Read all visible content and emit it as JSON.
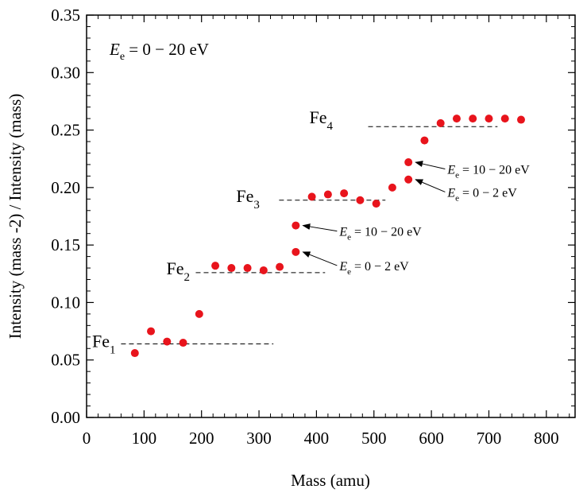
{
  "chart_data": {
    "type": "scatter",
    "xlabel": "Mass (amu)",
    "ylabel": "Intensity (mass -2) / Intensity (mass)",
    "xlim": [
      0,
      850
    ],
    "ylim": [
      0,
      0.35
    ],
    "xticks": [
      0,
      100,
      200,
      300,
      400,
      500,
      600,
      700,
      800
    ],
    "xtick_labels": [
      "0",
      "100",
      "200",
      "300",
      "400",
      "500",
      "600",
      "700",
      "800"
    ],
    "yticks": [
      0,
      0.05,
      0.1,
      0.15,
      0.2,
      0.25,
      0.3,
      0.35
    ],
    "ytick_labels": [
      "0.00",
      "0.05",
      "0.10",
      "0.15",
      "0.20",
      "0.25",
      "0.30",
      "0.35"
    ],
    "marker_color": "#e8141c",
    "condition": {
      "symbol": "E",
      "sub": "e",
      "text": " = 0 − 20 eV"
    },
    "points": [
      {
        "x": 84,
        "y": 0.056
      },
      {
        "x": 112,
        "y": 0.075
      },
      {
        "x": 140,
        "y": 0.066
      },
      {
        "x": 168,
        "y": 0.065
      },
      {
        "x": 196,
        "y": 0.09
      },
      {
        "x": 224,
        "y": 0.132
      },
      {
        "x": 252,
        "y": 0.13
      },
      {
        "x": 280,
        "y": 0.13
      },
      {
        "x": 308,
        "y": 0.128
      },
      {
        "x": 336,
        "y": 0.131
      },
      {
        "x": 364,
        "y": 0.144
      },
      {
        "x": 364,
        "y": 0.167
      },
      {
        "x": 392,
        "y": 0.192
      },
      {
        "x": 420,
        "y": 0.194
      },
      {
        "x": 448,
        "y": 0.195
      },
      {
        "x": 476,
        "y": 0.189
      },
      {
        "x": 504,
        "y": 0.186
      },
      {
        "x": 532,
        "y": 0.2
      },
      {
        "x": 560,
        "y": 0.207
      },
      {
        "x": 560,
        "y": 0.222
      },
      {
        "x": 588,
        "y": 0.241
      },
      {
        "x": 616,
        "y": 0.256
      },
      {
        "x": 644,
        "y": 0.26
      },
      {
        "x": 672,
        "y": 0.26
      },
      {
        "x": 700,
        "y": 0.26
      },
      {
        "x": 728,
        "y": 0.26
      },
      {
        "x": 756,
        "y": 0.259
      }
    ],
    "levels": [
      {
        "name": "Fe",
        "sub": "1",
        "y": 0.064,
        "x_start": 60,
        "x_end": 325
      },
      {
        "name": "Fe",
        "sub": "2",
        "y": 0.126,
        "x_start": 190,
        "x_end": 415
      },
      {
        "name": "Fe",
        "sub": "3",
        "y": 0.189,
        "x_start": 335,
        "x_end": 520
      },
      {
        "name": "Fe",
        "sub": "4",
        "y": 0.253,
        "x_start": 490,
        "x_end": 715
      }
    ],
    "annotations": [
      {
        "symbol": "E",
        "sub": "e",
        "text": " = 0 − 2 eV",
        "point_x": 364,
        "point_y": 0.144,
        "text_x": 440,
        "text_y": 0.128
      },
      {
        "symbol": "E",
        "sub": "e",
        "text": " = 10 − 20 eV",
        "point_x": 364,
        "point_y": 0.167,
        "text_x": 440,
        "text_y": 0.158
      },
      {
        "symbol": "E",
        "sub": "e",
        "text": " = 0 − 2 eV",
        "point_x": 560,
        "point_y": 0.207,
        "text_x": 628,
        "text_y": 0.192
      },
      {
        "symbol": "E",
        "sub": "e",
        "text": " = 10 − 20 eV",
        "point_x": 560,
        "point_y": 0.222,
        "text_x": 628,
        "text_y": 0.212
      }
    ]
  }
}
